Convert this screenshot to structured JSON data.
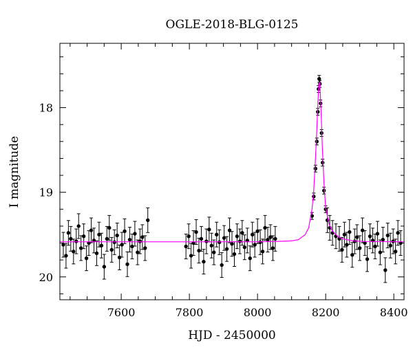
{
  "chart_data": {
    "type": "scatter",
    "title": "OGLE-2018-BLG-0125",
    "xlabel": "HJD - 2450000",
    "ylabel": "I magnitude",
    "xlim": [
      7420,
      8430
    ],
    "ylim": [
      20.27,
      17.24
    ],
    "y_inverted": true,
    "xticks": [
      7600,
      7800,
      8000,
      8200,
      8400
    ],
    "yticks": [
      18,
      19,
      20
    ],
    "grid": false,
    "colors": {
      "points": "#000000",
      "model": "#ff00ff"
    },
    "series": [
      {
        "type": "scatter",
        "marker": "filled-circle-with-errorbars",
        "x": [
          7430,
          7438,
          7445,
          7452,
          7460,
          7468,
          7475,
          7482,
          7490,
          7498,
          7505,
          7512,
          7520,
          7528,
          7535,
          7542,
          7550,
          7558,
          7565,
          7572,
          7580,
          7588,
          7595,
          7602,
          7610,
          7618,
          7625,
          7632,
          7640,
          7648,
          7655,
          7662,
          7670,
          7678,
          7790,
          7798,
          7805,
          7812,
          7820,
          7828,
          7835,
          7842,
          7850,
          7858,
          7865,
          7872,
          7880,
          7888,
          7895,
          7902,
          7910,
          7918,
          7925,
          7932,
          7940,
          7948,
          7955,
          7962,
          7970,
          7978,
          7985,
          7992,
          8000,
          8008,
          8015,
          8022,
          8030,
          8038,
          8045,
          8052,
          8160,
          8165,
          8170,
          8174,
          8177,
          8179,
          8181,
          8183,
          8185,
          8188,
          8191,
          8195,
          8200,
          8205,
          8212,
          8220,
          8230,
          8240,
          8248,
          8255,
          8262,
          8270,
          8278,
          8285,
          8292,
          8300,
          8308,
          8315,
          8322,
          8330,
          8338,
          8345,
          8352,
          8360,
          8368,
          8375,
          8382,
          8390,
          8398,
          8405,
          8412,
          8420
        ],
        "y": [
          19.62,
          19.75,
          19.48,
          19.55,
          19.7,
          19.58,
          19.4,
          19.66,
          19.52,
          19.78,
          19.6,
          19.45,
          19.57,
          19.72,
          19.5,
          19.63,
          19.88,
          19.55,
          19.42,
          19.68,
          19.59,
          19.51,
          19.77,
          19.62,
          19.46,
          19.85,
          19.56,
          19.64,
          19.49,
          19.71,
          19.58,
          19.53,
          19.66,
          19.33,
          19.64,
          19.52,
          19.75,
          19.6,
          19.47,
          19.69,
          19.55,
          19.82,
          19.58,
          19.44,
          19.63,
          19.71,
          19.5,
          19.59,
          19.86,
          19.54,
          19.67,
          19.45,
          19.61,
          19.73,
          19.52,
          19.58,
          19.48,
          19.65,
          19.57,
          19.78,
          19.5,
          19.62,
          19.46,
          19.59,
          19.7,
          19.42,
          19.56,
          19.53,
          19.66,
          19.55,
          19.28,
          19.05,
          18.72,
          18.4,
          18.05,
          17.78,
          17.66,
          17.72,
          17.95,
          18.3,
          18.65,
          18.98,
          19.2,
          19.33,
          19.42,
          19.48,
          19.52,
          19.55,
          19.68,
          19.5,
          19.62,
          19.47,
          19.74,
          19.58,
          19.53,
          19.66,
          19.45,
          19.6,
          19.79,
          19.52,
          19.57,
          19.64,
          19.49,
          19.71,
          19.56,
          19.92,
          19.51,
          19.63,
          19.58,
          19.7,
          19.48,
          19.6
        ]
      },
      {
        "type": "line",
        "name": "",
        "x": [
          7420,
          7600,
          7800,
          8000,
          8060,
          8100,
          8120,
          8140,
          8150,
          8160,
          8165,
          8170,
          8174,
          8177,
          8180,
          8182,
          8184,
          8187,
          8190,
          8195,
          8200,
          8210,
          8220,
          8235,
          8250,
          8280,
          8320,
          8430
        ],
        "y": [
          19.585,
          19.585,
          19.585,
          19.585,
          19.58,
          19.575,
          19.56,
          19.5,
          19.42,
          19.2,
          18.98,
          18.6,
          18.25,
          17.95,
          17.72,
          17.7,
          17.8,
          18.1,
          18.45,
          18.9,
          19.18,
          19.38,
          19.46,
          19.52,
          19.55,
          19.575,
          19.582,
          19.585
        ]
      }
    ]
  }
}
